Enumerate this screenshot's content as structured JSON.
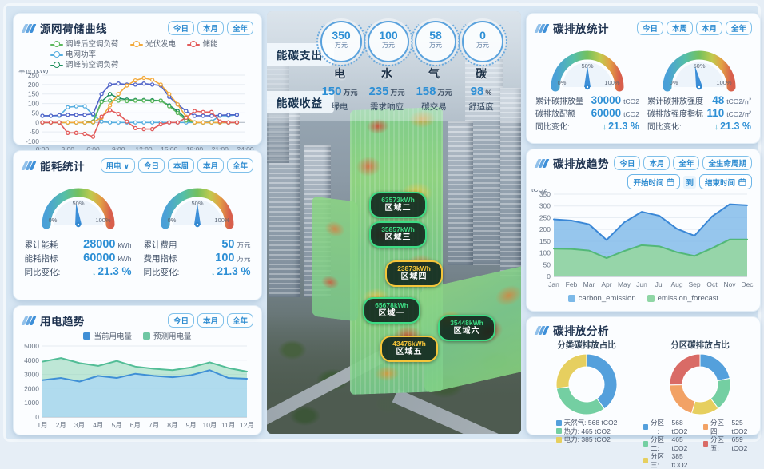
{
  "ui": {
    "gauge_ticks": [
      "0%",
      "50%",
      "100%"
    ],
    "arrow_down": "↓"
  },
  "left": {
    "source_curve": {
      "title": "源网荷储曲线",
      "buttons": [
        "今日",
        "本月",
        "全年"
      ],
      "legend": [
        {
          "label": "调峰后空调负荷",
          "color": "#5cb85c"
        },
        {
          "label": "光伏发电",
          "color": "#f2a93b"
        },
        {
          "label": "储能",
          "color": "#e25b5b"
        },
        {
          "label": "电网功率",
          "color": "#56aee0"
        },
        {
          "label": "调峰前空调负荷",
          "color": "#1f8f5f"
        }
      ]
    },
    "energy_stats": {
      "title": "能耗统计",
      "dropdown_label": "用电",
      "buttons": [
        "今日",
        "本周",
        "本月",
        "全年"
      ],
      "gauges": [
        {
          "rows": [
            {
              "label": "累计能耗",
              "value": "28000",
              "unit": "kWh"
            },
            {
              "label": "能耗指标",
              "value": "60000",
              "unit": "kWh"
            }
          ],
          "yoy_label": "同比变化:",
          "yoy_value": "21.3 %"
        },
        {
          "rows": [
            {
              "label": "累计费用",
              "value": "50",
              "unit": "万元"
            },
            {
              "label": "费用指标",
              "value": "100",
              "unit": "万元"
            }
          ],
          "yoy_label": "同比变化:",
          "yoy_value": "21.3 %"
        }
      ]
    },
    "power_trend": {
      "title": "用电趋势",
      "buttons": [
        "今日",
        "本月",
        "全年"
      ],
      "legend": [
        {
          "label": "当前用电量",
          "color": "#3f8fd6"
        },
        {
          "label": "预测用电量",
          "color": "#6fc7a3"
        }
      ]
    }
  },
  "center": {
    "expenditure_label": "能碳支出",
    "income_label": "能碳收益",
    "expenditure_items": [
      {
        "value": "350",
        "unit": "万元",
        "label": "电"
      },
      {
        "value": "100",
        "unit": "万元",
        "label": "水"
      },
      {
        "value": "58",
        "unit": "万元",
        "label": "气"
      },
      {
        "value": "0",
        "unit": "万元",
        "label": "碳"
      }
    ],
    "income_items": [
      {
        "value": "150",
        "unit": "万元",
        "label": "绿电"
      },
      {
        "value": "235",
        "unit": "万元",
        "label": "需求响应"
      },
      {
        "value": "158",
        "unit": "万元",
        "label": "碳交易"
      },
      {
        "value": "98",
        "unit": "%",
        "label": "舒适度"
      }
    ],
    "zones": [
      {
        "value": "63573kWh",
        "name": "区域二",
        "accent": "#3ddc84"
      },
      {
        "value": "35857kWh",
        "name": "区域三",
        "accent": "#3ddc84"
      },
      {
        "value": "23873kWh",
        "name": "区域四",
        "accent": "#f5c53a"
      },
      {
        "value": "65678kWh",
        "name": "区域一",
        "accent": "#3ddc84"
      },
      {
        "value": "35448kWh",
        "name": "区域六",
        "accent": "#3ddc84"
      },
      {
        "value": "43476kWh",
        "name": "区域五",
        "accent": "#f5c53a"
      }
    ]
  },
  "right": {
    "carbon_stats": {
      "title": "碳排放统计",
      "buttons": [
        "今日",
        "本周",
        "本月",
        "全年"
      ],
      "gauges": [
        {
          "rows": [
            {
              "label": "累计碳排放量",
              "value": "30000",
              "unit": "tCO2"
            },
            {
              "label": "碳排放配额",
              "value": "60000",
              "unit": "tCO2"
            }
          ],
          "yoy_label": "同比变化:",
          "yoy_value": "21.3 %"
        },
        {
          "rows": [
            {
              "label": "累计碳排放强度",
              "value": "48",
              "unit": "tCO2/㎡"
            },
            {
              "label": "碳排放强度指标",
              "value": "110",
              "unit": "tCO2/㎡"
            }
          ],
          "yoy_label": "同比变化:",
          "yoy_value": "21.3 %"
        }
      ]
    },
    "carbon_trend": {
      "title": "碳排放趋势",
      "buttons": [
        "今日",
        "本月",
        "全年",
        "全生命周期"
      ],
      "start_label": "开始时间",
      "to_label": "到",
      "end_label": "结束时间",
      "legend": [
        {
          "label": "carbon_emission",
          "color": "#7cb9e8"
        },
        {
          "label": "emission_forecast",
          "color": "#8fd6a5"
        }
      ]
    },
    "carbon_analysis": {
      "title": "碳排放分析",
      "donut1_title": "分类碳排放占比",
      "donut2_title": "分区碳排放占比",
      "legend1": [
        {
          "label": "天然气:",
          "value": "568 tCO2",
          "color": "#54a0dc"
        },
        {
          "label": "热力:",
          "value": "465 tCO2",
          "color": "#74cfa2"
        },
        {
          "label": "电力:",
          "value": "385 tCO2",
          "color": "#e6cf5f"
        }
      ],
      "legend2": [
        {
          "label": "分区一:",
          "value": "568 tCO2",
          "color": "#54a0dc"
        },
        {
          "label": "分区二:",
          "value": "465 tCO2",
          "color": "#74cfa2"
        },
        {
          "label": "分区三:",
          "value": "385 tCO2",
          "color": "#e6cf5f"
        },
        {
          "label": "分区四:",
          "value": "525 tCO2",
          "color": "#f2a265"
        },
        {
          "label": "分区五:",
          "value": "659 tCO2",
          "color": "#d96b66"
        }
      ]
    }
  },
  "chart_data": [
    {
      "mount": "source",
      "type": "line",
      "title": "源网荷储曲线",
      "ylabel": "单位 (kW)",
      "ylim": [
        -100,
        250
      ],
      "ystep": 50,
      "xmax": 24,
      "xticks": [
        {
          "pos": 0,
          "label": "0:00"
        },
        {
          "pos": 3,
          "label": "3:00"
        },
        {
          "pos": 6,
          "label": "6:00"
        },
        {
          "pos": 9,
          "label": "9:00"
        },
        {
          "pos": 12,
          "label": "12:00"
        },
        {
          "pos": 15,
          "label": "15:00"
        },
        {
          "pos": 18,
          "label": "18:00"
        },
        {
          "pos": 21,
          "label": "21:00"
        },
        {
          "pos": 24,
          "label": "24:00"
        }
      ],
      "series": [
        {
          "name": "电网功率",
          "color": "#56aee0",
          "marker": true,
          "values": [
            35,
            35,
            35,
            80,
            85,
            85,
            40,
            5,
            0,
            0,
            0,
            0,
            0,
            0,
            0,
            0,
            0,
            0,
            0,
            0,
            5,
            35,
            35,
            40
          ]
        },
        {
          "name": "unlabeled",
          "color": "#4f63c8",
          "marker": true,
          "values": [
            35,
            35,
            38,
            40,
            40,
            40,
            45,
            150,
            200,
            205,
            200,
            200,
            205,
            200,
            195,
            135,
            95,
            60,
            35,
            35,
            35,
            38,
            40,
            40
          ]
        },
        {
          "name": "调峰前空调负荷",
          "color": "#1f8f5f",
          "marker": true,
          "values": [
            0,
            0,
            0,
            0,
            0,
            0,
            5,
            110,
            150,
            128,
            120,
            118,
            118,
            117,
            115,
            90,
            60,
            20,
            0,
            0,
            0,
            0,
            0,
            0
          ]
        },
        {
          "name": "调峰后空调负荷",
          "color": "#5cb85c",
          "marker": true,
          "values": [
            0,
            0,
            0,
            0,
            0,
            0,
            0,
            108,
            115,
            115,
            113,
            115,
            115,
            113,
            115,
            85,
            50,
            10,
            0,
            0,
            0,
            0,
            0,
            0
          ]
        },
        {
          "name": "光伏发电",
          "color": "#f2a93b",
          "marker": true,
          "values": [
            0,
            0,
            0,
            0,
            0,
            0,
            2,
            25,
            90,
            150,
            195,
            222,
            235,
            225,
            200,
            150,
            95,
            30,
            0,
            0,
            0,
            0,
            0,
            0
          ]
        },
        {
          "name": "储能",
          "color": "#e25b5b",
          "marker": true,
          "values": [
            0,
            0,
            0,
            -55,
            -55,
            -60,
            -75,
            30,
            65,
            45,
            5,
            -30,
            -35,
            -35,
            -10,
            0,
            0,
            25,
            60,
            55,
            55,
            5,
            0,
            0
          ]
        }
      ]
    },
    {
      "mount": "power",
      "type": "area",
      "title": "用电趋势",
      "categories": [
        "1月",
        "2月",
        "3月",
        "4月",
        "5月",
        "6月",
        "7月",
        "8月",
        "9月",
        "10月",
        "11月",
        "12月"
      ],
      "ylim": [
        0,
        5000
      ],
      "ystep": 1000,
      "series": [
        {
          "name": "预测用电量",
          "color": "#52bd96",
          "fill": "rgba(140,214,180,0.55)",
          "values": [
            3900,
            4150,
            3800,
            3600,
            3950,
            3550,
            3400,
            3300,
            3500,
            3850,
            3450,
            3200
          ]
        },
        {
          "name": "当前用电量",
          "color": "#3f8fd6",
          "fill": "rgba(172,216,244,0.8)",
          "values": [
            2600,
            2750,
            2500,
            2900,
            2750,
            3050,
            2900,
            2800,
            2950,
            3300,
            2750,
            2700
          ]
        }
      ]
    },
    {
      "mount": "carbon",
      "type": "area",
      "title": "碳排放趋势",
      "ylabel": "tCO2",
      "categories": [
        "Jan",
        "Feb",
        "Mar",
        "Apr",
        "May",
        "Jun",
        "Jul",
        "Aug",
        "Sep",
        "Oct",
        "Nov",
        "Dec"
      ],
      "ylim": [
        0,
        350
      ],
      "ystep": 50,
      "series": [
        {
          "name": "carbon_emission",
          "color": "#3a87d6",
          "fill": "rgba(125,184,232,0.8)",
          "values": [
            243,
            238,
            222,
            155,
            230,
            275,
            258,
            203,
            173,
            255,
            307,
            303
          ]
        },
        {
          "name": "emission_forecast",
          "color": "#52b878",
          "fill": "rgba(150,214,165,0.95)",
          "values": [
            118,
            117,
            110,
            78,
            108,
            133,
            128,
            103,
            87,
            120,
            157,
            157
          ]
        }
      ]
    },
    {
      "mount": "donut1",
      "type": "pie",
      "title": "分类碳排放占比",
      "unit": "tCO2",
      "labels": [
        "天然气",
        "热力",
        "电力"
      ],
      "values": [
        568,
        465,
        385
      ],
      "colors": [
        "#54a0dc",
        "#74cfa2",
        "#e6cf5f"
      ]
    },
    {
      "mount": "donut2",
      "type": "pie",
      "title": "分区碳排放占比",
      "unit": "tCO2",
      "labels": [
        "分区一",
        "分区二",
        "分区三",
        "分区四",
        "分区五"
      ],
      "values": [
        568,
        465,
        385,
        525,
        659
      ],
      "colors": [
        "#54a0dc",
        "#74cfa2",
        "#e6cf5f",
        "#f2a265",
        "#d96b66"
      ]
    },
    {
      "mount": "gauge-energy-total",
      "type": "gauge",
      "percent": 46.7
    },
    {
      "mount": "gauge-energy-cost",
      "type": "gauge",
      "percent": 50
    },
    {
      "mount": "gauge-carbon-total",
      "type": "gauge",
      "percent": 50
    },
    {
      "mount": "gauge-carbon-intensity",
      "type": "gauge",
      "percent": 43.6
    }
  ]
}
